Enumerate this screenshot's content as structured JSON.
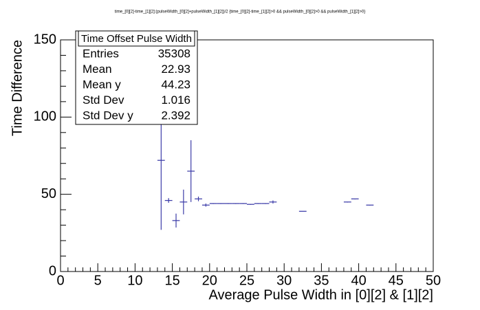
{
  "chart_data": {
    "type": "profile",
    "title": "time_[0][2]-time_[1][2]:(pulseWidth_[0][2]+pulseWidth_[1][2])/2  {time_[0][2]-time_[1][2]>0 && pulseWidth_[0][2]>0 && pulseWidth_[1][2]>0}",
    "xlabel": "Average Pulse Width in [0][2] & [1][2]",
    "ylabel": "Time Difference",
    "x": [
      13.5,
      14.5,
      15.5,
      16.5,
      17.5,
      18.5,
      19.5,
      20.5,
      21.5,
      22.5,
      23.5,
      24.5,
      25.5,
      26.5,
      27.5,
      28.5,
      32.5,
      38.5,
      39.5,
      41.5
    ],
    "values": [
      72,
      46,
      33,
      45,
      65,
      47,
      43,
      44,
      44,
      44,
      44,
      44,
      43.5,
      44,
      44,
      45,
      39,
      45,
      47,
      43
    ],
    "errors": [
      45,
      1.5,
      4.5,
      8,
      20,
      1.5,
      1,
      0.3,
      0.3,
      0.3,
      0.3,
      0.3,
      0.3,
      0.3,
      0.3,
      1,
      0.3,
      0.3,
      0.3,
      0.3
    ],
    "bin_width": 1,
    "color": "#3c3ca8",
    "xlim": [
      0,
      50
    ],
    "xticks": [
      0,
      5,
      10,
      15,
      20,
      25,
      30,
      35,
      40,
      45,
      50
    ],
    "ylim": [
      0,
      150
    ],
    "yticks": [
      0,
      50,
      100,
      150
    ],
    "stats": {
      "title": "Time Offset Pulse Width",
      "rows": [
        {
          "label": "Entries",
          "value": 35308
        },
        {
          "label": "Mean",
          "value": 22.93
        },
        {
          "label": "Mean y",
          "value": 44.23
        },
        {
          "label": "Std Dev",
          "value": 1.016
        },
        {
          "label": "Std Dev y",
          "value": 2.392
        }
      ]
    }
  }
}
